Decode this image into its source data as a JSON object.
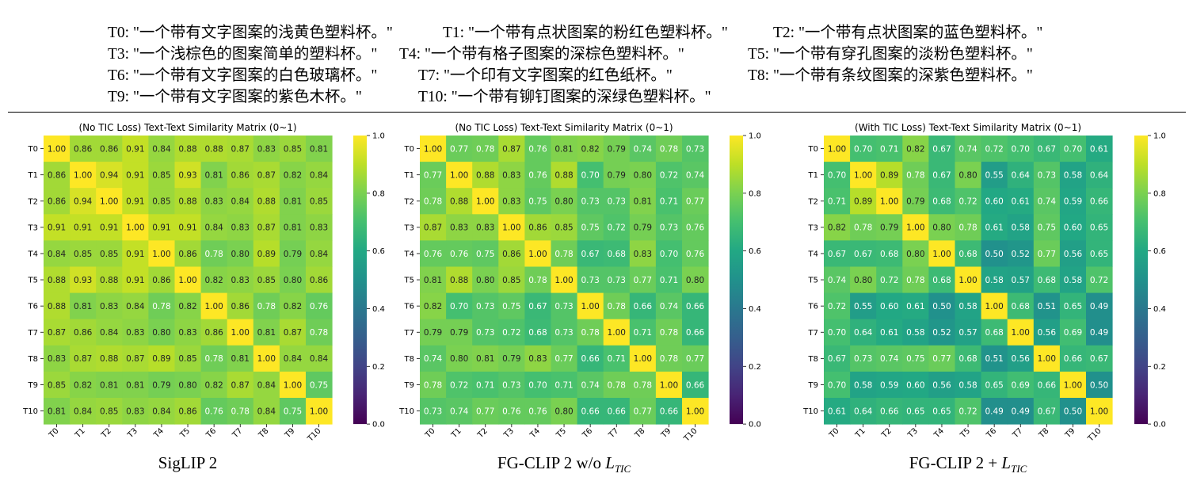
{
  "legend": {
    "lines": [
      [
        "T0: \"一个带有文字图案的浅黄色塑料杯。\"",
        "T1: \"一个带有点状图案的粉红色塑料杯。\"",
        "T2: \"一个带有点状图案的蓝色塑料杯。\""
      ],
      [
        "T3: \"一个浅棕色的图案简单的塑料杯。\"",
        "T4: \"一个带有格子图案的深棕色塑料杯。\"",
        "T5: \"一个带有穿孔图案的淡粉色塑料杯。\""
      ],
      [
        "T6: \"一个带有文字图案的白色玻璃杯。\"",
        "T7: \"一个印有文字图案的红色纸杯。\"",
        "T8: \"一个带有条纹图案的深紫色塑料杯。\""
      ],
      [
        "T9: \"一个带有文字图案的紫色木杯。\"",
        "T10: \"一个带有铆钉图案的深绿色塑料杯。\""
      ]
    ]
  },
  "chart_data": [
    {
      "type": "heatmap",
      "title": "(No TIC Loss) Text-Text Similarity Matrix (0~1)",
      "caption_main": "SigLIP 2",
      "caption_italic": "",
      "caption_sub": "",
      "labels": [
        "T0",
        "T1",
        "T2",
        "T3",
        "T4",
        "T5",
        "T6",
        "T7",
        "T8",
        "T9",
        "T10"
      ],
      "colorbar_ticks": [
        "0.0",
        "0.2",
        "0.4",
        "0.6",
        "0.8",
        "1.0"
      ],
      "range": [
        0,
        1
      ],
      "colormap": "viridis",
      "values": [
        [
          1.0,
          0.86,
          0.86,
          0.91,
          0.84,
          0.88,
          0.88,
          0.87,
          0.83,
          0.85,
          0.81
        ],
        [
          0.86,
          1.0,
          0.94,
          0.91,
          0.85,
          0.93,
          0.81,
          0.86,
          0.87,
          0.82,
          0.84
        ],
        [
          0.86,
          0.94,
          1.0,
          0.91,
          0.85,
          0.88,
          0.83,
          0.84,
          0.88,
          0.81,
          0.85
        ],
        [
          0.91,
          0.91,
          0.91,
          1.0,
          0.91,
          0.91,
          0.84,
          0.83,
          0.87,
          0.81,
          0.83
        ],
        [
          0.84,
          0.85,
          0.85,
          0.91,
          1.0,
          0.86,
          0.78,
          0.8,
          0.89,
          0.79,
          0.84
        ],
        [
          0.88,
          0.93,
          0.88,
          0.91,
          0.86,
          1.0,
          0.82,
          0.83,
          0.85,
          0.8,
          0.86
        ],
        [
          0.88,
          0.81,
          0.83,
          0.84,
          0.78,
          0.82,
          1.0,
          0.86,
          0.78,
          0.82,
          0.76
        ],
        [
          0.87,
          0.86,
          0.84,
          0.83,
          0.8,
          0.83,
          0.86,
          1.0,
          0.81,
          0.87,
          0.78
        ],
        [
          0.83,
          0.87,
          0.88,
          0.87,
          0.89,
          0.85,
          0.78,
          0.81,
          1.0,
          0.84,
          0.84
        ],
        [
          0.85,
          0.82,
          0.81,
          0.81,
          0.79,
          0.8,
          0.82,
          0.87,
          0.84,
          1.0,
          0.75
        ],
        [
          0.81,
          0.84,
          0.85,
          0.83,
          0.84,
          0.86,
          0.76,
          0.78,
          0.84,
          0.75,
          1.0
        ]
      ]
    },
    {
      "type": "heatmap",
      "title": "(No TIC Loss) Text-Text Similarity Matrix (0~1)",
      "caption_main": "FG-CLIP 2 w/o ",
      "caption_italic": "L",
      "caption_sub": "TIC",
      "labels": [
        "T0",
        "T1",
        "T2",
        "T3",
        "T4",
        "T5",
        "T6",
        "T7",
        "T8",
        "T9",
        "T10"
      ],
      "colorbar_ticks": [
        "0.0",
        "0.2",
        "0.4",
        "0.6",
        "0.8",
        "1.0"
      ],
      "range": [
        0,
        1
      ],
      "colormap": "viridis",
      "values": [
        [
          1.0,
          0.77,
          0.78,
          0.87,
          0.76,
          0.81,
          0.82,
          0.79,
          0.74,
          0.78,
          0.73
        ],
        [
          0.77,
          1.0,
          0.88,
          0.83,
          0.76,
          0.88,
          0.7,
          0.79,
          0.8,
          0.72,
          0.74
        ],
        [
          0.78,
          0.88,
          1.0,
          0.83,
          0.75,
          0.8,
          0.73,
          0.73,
          0.81,
          0.71,
          0.77
        ],
        [
          0.87,
          0.83,
          0.83,
          1.0,
          0.86,
          0.85,
          0.75,
          0.72,
          0.79,
          0.73,
          0.76
        ],
        [
          0.76,
          0.76,
          0.75,
          0.86,
          1.0,
          0.78,
          0.67,
          0.68,
          0.83,
          0.7,
          0.76
        ],
        [
          0.81,
          0.88,
          0.8,
          0.85,
          0.78,
          1.0,
          0.73,
          0.73,
          0.77,
          0.71,
          0.8
        ],
        [
          0.82,
          0.7,
          0.73,
          0.75,
          0.67,
          0.73,
          1.0,
          0.78,
          0.66,
          0.74,
          0.66
        ],
        [
          0.79,
          0.79,
          0.73,
          0.72,
          0.68,
          0.73,
          0.78,
          1.0,
          0.71,
          0.78,
          0.66
        ],
        [
          0.74,
          0.8,
          0.81,
          0.79,
          0.83,
          0.77,
          0.66,
          0.71,
          1.0,
          0.78,
          0.77
        ],
        [
          0.78,
          0.72,
          0.71,
          0.73,
          0.7,
          0.71,
          0.74,
          0.78,
          0.78,
          1.0,
          0.66
        ],
        [
          0.73,
          0.74,
          0.77,
          0.76,
          0.76,
          0.8,
          0.66,
          0.66,
          0.77,
          0.66,
          1.0
        ]
      ]
    },
    {
      "type": "heatmap",
      "title": "(With TIC Loss) Text-Text Similarity Matrix (0~1)",
      "caption_main": "FG-CLIP 2 + ",
      "caption_italic": "L",
      "caption_sub": "TIC",
      "labels": [
        "T0",
        "T1",
        "T2",
        "T3",
        "T4",
        "T5",
        "T6",
        "T7",
        "T8",
        "T9",
        "T10"
      ],
      "colorbar_ticks": [
        "0.0",
        "0.2",
        "0.4",
        "0.6",
        "0.8",
        "1.0"
      ],
      "range": [
        0,
        1
      ],
      "colormap": "viridis",
      "values": [
        [
          1.0,
          0.7,
          0.71,
          0.82,
          0.67,
          0.74,
          0.72,
          0.7,
          0.67,
          0.7,
          0.61
        ],
        [
          0.7,
          1.0,
          0.89,
          0.78,
          0.67,
          0.8,
          0.55,
          0.64,
          0.73,
          0.58,
          0.64
        ],
        [
          0.71,
          0.89,
          1.0,
          0.79,
          0.68,
          0.72,
          0.6,
          0.61,
          0.74,
          0.59,
          0.66
        ],
        [
          0.82,
          0.78,
          0.79,
          1.0,
          0.8,
          0.78,
          0.61,
          0.58,
          0.75,
          0.6,
          0.65
        ],
        [
          0.67,
          0.67,
          0.68,
          0.8,
          1.0,
          0.68,
          0.5,
          0.52,
          0.77,
          0.56,
          0.65
        ],
        [
          0.74,
          0.8,
          0.72,
          0.78,
          0.68,
          1.0,
          0.58,
          0.57,
          0.68,
          0.58,
          0.72
        ],
        [
          0.72,
          0.55,
          0.6,
          0.61,
          0.5,
          0.58,
          1.0,
          0.68,
          0.51,
          0.65,
          0.49
        ],
        [
          0.7,
          0.64,
          0.61,
          0.58,
          0.52,
          0.57,
          0.68,
          1.0,
          0.56,
          0.69,
          0.49
        ],
        [
          0.67,
          0.73,
          0.74,
          0.75,
          0.77,
          0.68,
          0.51,
          0.56,
          1.0,
          0.66,
          0.67
        ],
        [
          0.7,
          0.58,
          0.59,
          0.6,
          0.56,
          0.58,
          0.65,
          0.69,
          0.66,
          1.0,
          0.5
        ],
        [
          0.61,
          0.64,
          0.66,
          0.65,
          0.65,
          0.72,
          0.49,
          0.49,
          0.67,
          0.5,
          1.0
        ]
      ]
    }
  ]
}
